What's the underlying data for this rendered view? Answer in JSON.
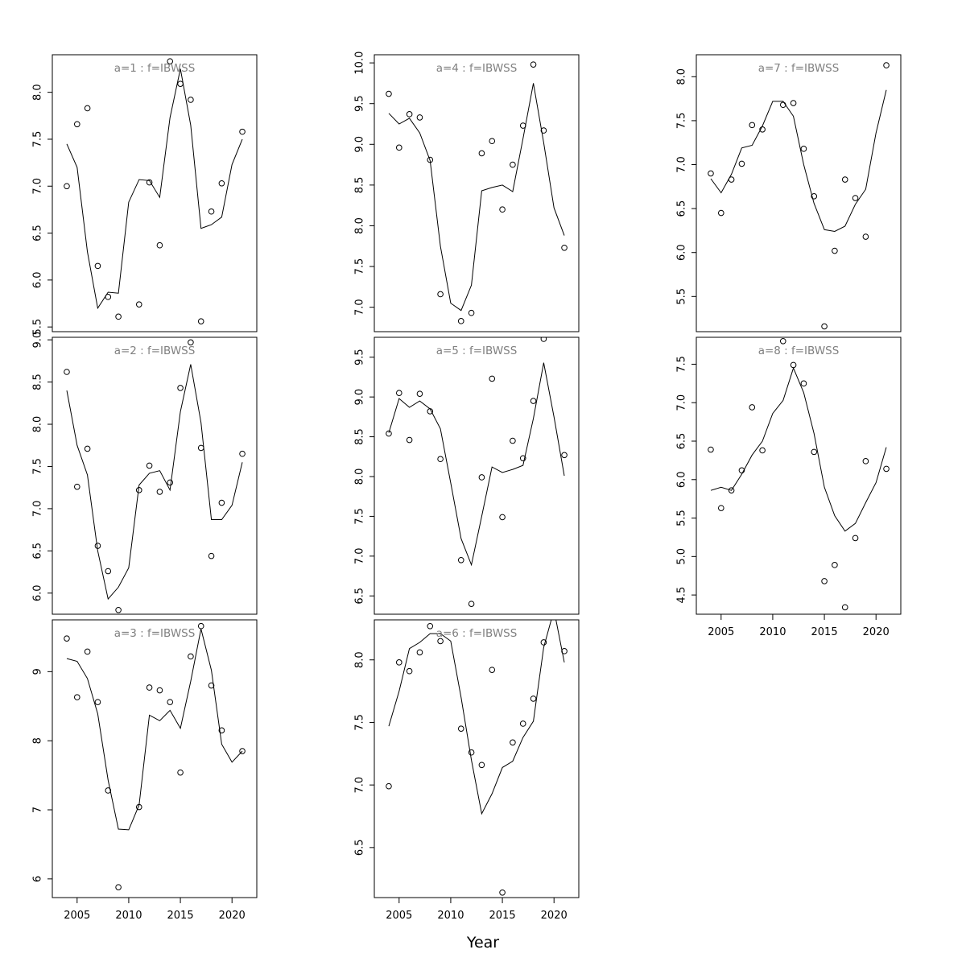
{
  "xlabel": "Year",
  "colors": {
    "line": "#000000",
    "points": "#000000",
    "panel_title": "#808080",
    "frame": "#000000"
  },
  "chart_data": [
    {
      "type": "line+scatter",
      "title": "a=1 : f=IBWSS",
      "ylim": [
        5.45,
        8.4
      ],
      "xlim": [
        2002.6,
        2022.4
      ],
      "yticks": [
        5.5,
        6.0,
        6.5,
        7.0,
        7.5,
        8.0
      ],
      "ytick_labels": [
        "5.5",
        "6.0",
        "6.5",
        "7.0",
        "7.5",
        "8.0"
      ],
      "xticks": [
        2005,
        2010,
        2015,
        2020
      ],
      "show_xaxis": false,
      "points": {
        "x": [
          2004,
          2005,
          2006,
          2007,
          2008,
          2009,
          2011,
          2012,
          2013,
          2014,
          2015,
          2016,
          2017,
          2018,
          2019,
          2021
        ],
        "y": [
          7.0,
          7.66,
          7.83,
          6.15,
          5.82,
          5.61,
          5.74,
          7.04,
          6.37,
          8.33,
          8.09,
          7.92,
          5.56,
          6.73,
          7.03,
          7.58
        ]
      },
      "line": {
        "x": [
          2004,
          2005,
          2006,
          2007,
          2008,
          2009,
          2010,
          2011,
          2012,
          2013,
          2014,
          2015,
          2016,
          2017,
          2018,
          2019,
          2020,
          2021
        ],
        "y": [
          7.45,
          7.2,
          6.3,
          5.7,
          5.87,
          5.86,
          6.83,
          7.07,
          7.06,
          6.88,
          7.73,
          8.25,
          7.65,
          6.55,
          6.59,
          6.67,
          7.23,
          7.5
        ]
      }
    },
    {
      "type": "line+scatter",
      "title": "a=2 : f=IBWSS",
      "ylim": [
        5.75,
        9.03
      ],
      "xlim": [
        2002.6,
        2022.4
      ],
      "yticks": [
        6.0,
        6.5,
        7.0,
        7.5,
        8.0,
        8.5,
        9.0
      ],
      "ytick_labels": [
        "6.0",
        "6.5",
        "7.0",
        "7.5",
        "8.0",
        "8.5",
        "9.0"
      ],
      "xticks": [
        2005,
        2010,
        2015,
        2020
      ],
      "show_xaxis": false,
      "points": {
        "x": [
          2004,
          2005,
          2006,
          2007,
          2008,
          2009,
          2011,
          2012,
          2013,
          2014,
          2015,
          2016,
          2017,
          2018,
          2019,
          2021
        ],
        "y": [
          8.62,
          7.26,
          7.71,
          6.56,
          6.26,
          5.8,
          7.22,
          7.51,
          7.2,
          7.31,
          8.43,
          8.97,
          7.72,
          6.44,
          7.07,
          7.65
        ]
      },
      "line": {
        "x": [
          2004,
          2005,
          2006,
          2007,
          2008,
          2009,
          2010,
          2011,
          2012,
          2013,
          2014,
          2015,
          2016,
          2017,
          2018,
          2019,
          2020,
          2021
        ],
        "y": [
          8.4,
          7.75,
          7.4,
          6.5,
          5.93,
          6.07,
          6.3,
          7.28,
          7.42,
          7.45,
          7.22,
          8.15,
          8.71,
          8.02,
          6.87,
          6.87,
          7.04,
          7.55
        ]
      }
    },
    {
      "type": "line+scatter",
      "title": "a=3 : f=IBWSS",
      "ylim": [
        5.73,
        9.75
      ],
      "xlim": [
        2002.6,
        2022.4
      ],
      "yticks": [
        6,
        7,
        8,
        9
      ],
      "ytick_labels": [
        "6",
        "7",
        "8",
        "9"
      ],
      "xticks": [
        2005,
        2010,
        2015,
        2020
      ],
      "show_xaxis": true,
      "xtick_labels": [
        "2005",
        "2010",
        "2015",
        "2020"
      ],
      "points": {
        "x": [
          2004,
          2005,
          2006,
          2007,
          2008,
          2009,
          2011,
          2012,
          2013,
          2014,
          2015,
          2016,
          2017,
          2018,
          2019,
          2021
        ],
        "y": [
          9.48,
          8.63,
          9.29,
          8.56,
          7.28,
          5.88,
          7.04,
          8.77,
          8.73,
          8.56,
          7.54,
          9.22,
          9.66,
          8.8,
          8.15,
          7.85
        ]
      },
      "line": {
        "x": [
          2004,
          2005,
          2006,
          2007,
          2008,
          2009,
          2010,
          2011,
          2012,
          2013,
          2014,
          2015,
          2016,
          2017,
          2018,
          2019,
          2020,
          2021
        ],
        "y": [
          9.19,
          9.15,
          8.9,
          8.39,
          7.43,
          6.72,
          6.71,
          7.07,
          8.37,
          8.29,
          8.44,
          8.18,
          8.86,
          9.62,
          9.02,
          7.95,
          7.69,
          7.85
        ]
      }
    },
    {
      "type": "line+scatter",
      "title": "a=4 : f=IBWSS",
      "ylim": [
        6.7,
        10.1
      ],
      "xlim": [
        2002.6,
        2022.4
      ],
      "yticks": [
        7.0,
        7.5,
        8.0,
        8.5,
        9.0,
        9.5,
        10.0
      ],
      "ytick_labels": [
        "7.0",
        "7.5",
        "8.0",
        "8.5",
        "9.0",
        "9.5",
        "10.0"
      ],
      "xticks": [
        2005,
        2010,
        2015,
        2020
      ],
      "show_xaxis": false,
      "points": {
        "x": [
          2004,
          2005,
          2006,
          2007,
          2008,
          2009,
          2011,
          2012,
          2013,
          2014,
          2015,
          2016,
          2017,
          2018,
          2019,
          2021
        ],
        "y": [
          9.62,
          8.96,
          9.37,
          9.33,
          8.81,
          7.16,
          6.83,
          6.93,
          8.89,
          9.04,
          8.2,
          8.75,
          9.23,
          9.98,
          9.17,
          7.73
        ]
      },
      "line": {
        "x": [
          2004,
          2005,
          2006,
          2007,
          2008,
          2009,
          2010,
          2011,
          2012,
          2013,
          2014,
          2015,
          2016,
          2017,
          2018,
          2019,
          2020,
          2021
        ],
        "y": [
          9.38,
          9.25,
          9.32,
          9.14,
          8.8,
          7.75,
          7.05,
          6.96,
          7.27,
          8.43,
          8.47,
          8.5,
          8.42,
          9.07,
          9.75,
          9.02,
          8.22,
          7.88
        ]
      }
    },
    {
      "type": "line+scatter",
      "title": "a=5 : f=IBWSS",
      "ylim": [
        6.27,
        9.75
      ],
      "xlim": [
        2002.6,
        2022.4
      ],
      "yticks": [
        6.5,
        7.0,
        7.5,
        8.0,
        8.5,
        9.0,
        9.5
      ],
      "ytick_labels": [
        "6.5",
        "7.0",
        "7.5",
        "8.0",
        "8.5",
        "9.0",
        "9.5"
      ],
      "xticks": [
        2005,
        2010,
        2015,
        2020
      ],
      "show_xaxis": false,
      "points": {
        "x": [
          2004,
          2005,
          2006,
          2007,
          2008,
          2009,
          2011,
          2012,
          2013,
          2014,
          2015,
          2016,
          2017,
          2018,
          2019,
          2021
        ],
        "y": [
          8.54,
          9.05,
          8.46,
          9.04,
          8.82,
          8.22,
          6.95,
          6.4,
          7.99,
          9.23,
          7.49,
          8.45,
          8.23,
          8.95,
          9.73,
          8.27
        ]
      },
      "line": {
        "x": [
          2004,
          2005,
          2006,
          2007,
          2008,
          2009,
          2010,
          2011,
          2012,
          2013,
          2014,
          2015,
          2016,
          2017,
          2018,
          2019,
          2020,
          2021
        ],
        "y": [
          8.55,
          8.98,
          8.87,
          8.95,
          8.85,
          8.6,
          7.92,
          7.22,
          6.89,
          7.5,
          8.12,
          8.05,
          8.09,
          8.14,
          8.73,
          9.43,
          8.75,
          8.01
        ]
      }
    },
    {
      "type": "line+scatter",
      "title": "a=6 : f=IBWSS",
      "ylim": [
        6.1,
        8.32
      ],
      "xlim": [
        2002.6,
        2022.4
      ],
      "yticks": [
        6.5,
        7.0,
        7.5,
        8.0
      ],
      "ytick_labels": [
        "6.5",
        "7.0",
        "7.5",
        "8.0"
      ],
      "xticks": [
        2005,
        2010,
        2015,
        2020
      ],
      "show_xaxis": true,
      "xtick_labels": [
        "2005",
        "2010",
        "2015",
        "2020"
      ],
      "points": {
        "x": [
          2004,
          2005,
          2006,
          2007,
          2008,
          2009,
          2011,
          2012,
          2013,
          2014,
          2015,
          2016,
          2017,
          2018,
          2019,
          2021
        ],
        "y": [
          6.99,
          7.98,
          7.91,
          8.06,
          8.27,
          8.15,
          7.45,
          7.26,
          7.16,
          7.92,
          6.14,
          7.34,
          7.49,
          7.69,
          8.14,
          8.07
        ]
      },
      "line": {
        "x": [
          2004,
          2005,
          2006,
          2007,
          2008,
          2009,
          2010,
          2011,
          2012,
          2013,
          2014,
          2015,
          2016,
          2017,
          2018,
          2019,
          2020,
          2021
        ],
        "y": [
          7.47,
          7.75,
          8.09,
          8.14,
          8.21,
          8.21,
          8.15,
          7.7,
          7.2,
          6.77,
          6.93,
          7.14,
          7.19,
          7.38,
          7.51,
          8.1,
          8.4,
          7.98
        ]
      }
    },
    {
      "type": "line+scatter",
      "title": "a=7 : f=IBWSS",
      "ylim": [
        5.1,
        8.25
      ],
      "xlim": [
        2002.6,
        2022.4
      ],
      "yticks": [
        5.5,
        6.0,
        6.5,
        7.0,
        7.5,
        8.0
      ],
      "ytick_labels": [
        "5.5",
        "6.0",
        "6.5",
        "7.0",
        "7.5",
        "8.0"
      ],
      "xticks": [
        2005,
        2010,
        2015,
        2020
      ],
      "show_xaxis": false,
      "points": {
        "x": [
          2004,
          2005,
          2006,
          2007,
          2008,
          2009,
          2011,
          2012,
          2013,
          2014,
          2015,
          2016,
          2017,
          2018,
          2019,
          2021
        ],
        "y": [
          6.9,
          6.45,
          6.83,
          7.01,
          7.45,
          7.4,
          7.68,
          7.7,
          7.18,
          6.64,
          5.16,
          6.02,
          6.83,
          6.62,
          6.18,
          8.13
        ]
      },
      "line": {
        "x": [
          2004,
          2005,
          2006,
          2007,
          2008,
          2009,
          2010,
          2011,
          2012,
          2013,
          2014,
          2015,
          2016,
          2017,
          2018,
          2019,
          2020,
          2021
        ],
        "y": [
          6.84,
          6.68,
          6.89,
          7.19,
          7.22,
          7.44,
          7.72,
          7.72,
          7.55,
          7.0,
          6.56,
          6.26,
          6.24,
          6.3,
          6.55,
          6.72,
          7.36,
          7.85
        ]
      }
    },
    {
      "type": "line+scatter",
      "title": "a=8 : f=IBWSS",
      "ylim": [
        4.25,
        7.85
      ],
      "xlim": [
        2002.6,
        2022.4
      ],
      "yticks": [
        4.5,
        5.0,
        5.5,
        6.0,
        6.5,
        7.0,
        7.5
      ],
      "ytick_labels": [
        "4.5",
        "5.0",
        "5.5",
        "6.0",
        "6.5",
        "7.0",
        "7.5"
      ],
      "xticks": [
        2005,
        2010,
        2015,
        2020
      ],
      "show_xaxis": true,
      "xtick_labels": [
        "2005",
        "2010",
        "2015",
        "2020"
      ],
      "points": {
        "x": [
          2004,
          2005,
          2006,
          2007,
          2008,
          2009,
          2011,
          2012,
          2013,
          2014,
          2015,
          2016,
          2017,
          2018,
          2019,
          2021
        ],
        "y": [
          6.39,
          5.63,
          5.86,
          6.12,
          6.94,
          6.38,
          7.8,
          7.49,
          7.25,
          6.36,
          4.68,
          4.89,
          4.34,
          5.24,
          6.24,
          6.14
        ]
      },
      "line": {
        "x": [
          2004,
          2005,
          2006,
          2007,
          2008,
          2009,
          2010,
          2011,
          2012,
          2013,
          2014,
          2015,
          2016,
          2017,
          2018,
          2019,
          2020,
          2021
        ],
        "y": [
          5.86,
          5.9,
          5.86,
          6.07,
          6.32,
          6.5,
          6.86,
          7.03,
          7.45,
          7.13,
          6.6,
          5.9,
          5.53,
          5.33,
          5.43,
          5.7,
          5.96,
          6.42
        ]
      }
    }
  ]
}
